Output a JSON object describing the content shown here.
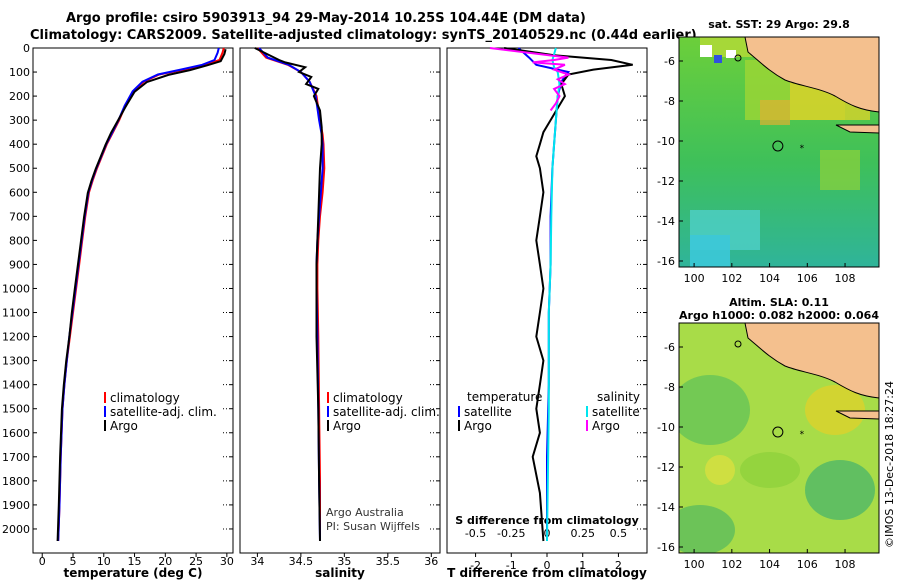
{
  "header": {
    "title_line1": "Argo profile: csiro 5903913_94 29-May-2014 10.25S 104.44E (DM data)",
    "title_line2": "Climatology: CARS2009. Satellite-adjusted climatology: synTS_20140529.nc (0.44d earlier)"
  },
  "credit": "©IMOS 13-Dec-2018 18:27:24",
  "colors": {
    "climatology": "#ff0000",
    "satellite": "#0000ff",
    "argo": "#000000",
    "sat_s": "#00e5ee",
    "argo_s": "#ff00ff"
  },
  "chart_data": [
    {
      "type": "line",
      "id": "temperature",
      "xlabel": "temperature (deg C)",
      "ylabel": "",
      "xlim": [
        -1.5,
        31
      ],
      "ylim": [
        2100,
        0
      ],
      "xticks": [
        "0",
        "5",
        "10",
        "15",
        "20",
        "25",
        "30"
      ],
      "xtick_values": [
        0,
        5,
        10,
        15,
        20,
        25,
        30
      ],
      "yticks": [
        "0",
        "100",
        "200",
        "300",
        "400",
        "500",
        "600",
        "700",
        "800",
        "900",
        "1000",
        "1100",
        "1200",
        "1300",
        "1400",
        "1500",
        "1600",
        "1700",
        "1800",
        "1900",
        "2000"
      ],
      "ytick_values": [
        0,
        100,
        200,
        300,
        400,
        500,
        600,
        700,
        800,
        900,
        1000,
        1100,
        1200,
        1300,
        1400,
        1500,
        1600,
        1700,
        1800,
        1900,
        2000
      ],
      "legend": [
        {
          "label": "climatology",
          "color": "#ff0000"
        },
        {
          "label": "satellite-adj. clim.",
          "color": "#0000ff"
        },
        {
          "label": "Argo",
          "color": "#000000"
        }
      ],
      "series": [
        {
          "name": "climatology",
          "color": "#ff0000",
          "x": [
            29.5,
            29.3,
            28.8,
            26.5,
            23,
            19,
            16.5,
            14.8,
            13.5,
            12.5,
            11.5,
            10.5,
            9.7,
            8.9,
            8.2,
            7.6,
            7.0,
            6.5,
            6.0,
            5.5,
            5.0,
            4.5,
            4.0,
            3.6,
            3.3,
            3.0,
            2.8,
            2.6
          ],
          "y": [
            0,
            20,
            50,
            70,
            90,
            110,
            140,
            180,
            240,
            300,
            350,
            400,
            450,
            500,
            550,
            600,
            700,
            800,
            900,
            1000,
            1100,
            1200,
            1300,
            1400,
            1500,
            1700,
            1900,
            2050
          ]
        },
        {
          "name": "satellite-adj. clim.",
          "color": "#0000ff",
          "x": [
            28.7,
            28.5,
            28.0,
            26.0,
            22.5,
            18.8,
            16.3,
            14.7,
            13.4,
            12.4,
            11.4,
            10.4,
            9.6,
            8.8,
            8.1,
            7.5,
            6.9,
            6.4,
            5.9,
            5.4,
            4.9,
            4.4,
            4.0,
            3.6,
            3.3,
            3.0,
            2.8,
            2.6
          ],
          "y": [
            0,
            20,
            50,
            70,
            90,
            110,
            140,
            180,
            240,
            300,
            350,
            400,
            450,
            500,
            550,
            600,
            700,
            800,
            900,
            1000,
            1100,
            1200,
            1300,
            1400,
            1500,
            1700,
            1900,
            2050
          ]
        },
        {
          "name": "Argo",
          "color": "#000000",
          "x": [
            29.8,
            29.6,
            29.0,
            26.8,
            24,
            20.5,
            17,
            15,
            13.6,
            12.3,
            11.2,
            10.3,
            9.5,
            8.7,
            8.0,
            7.4,
            6.8,
            6.3,
            5.8,
            5.3,
            4.8,
            4.4,
            3.9,
            3.5,
            3.2,
            2.9,
            2.7,
            2.5
          ],
          "y": [
            5,
            25,
            55,
            72,
            92,
            112,
            142,
            182,
            242,
            302,
            352,
            402,
            452,
            502,
            552,
            602,
            702,
            802,
            902,
            1002,
            1102,
            1202,
            1302,
            1402,
            1502,
            1702,
            1902,
            2050
          ]
        }
      ]
    },
    {
      "type": "line",
      "id": "salinity",
      "xlabel": "salinity",
      "ylabel": "",
      "xlim": [
        33.8,
        36.1
      ],
      "ylim": [
        2100,
        0
      ],
      "xticks": [
        "34",
        "34.5",
        "35",
        "35.5",
        "36"
      ],
      "xtick_values": [
        34,
        34.5,
        35,
        35.5,
        36
      ],
      "legend": [
        {
          "label": "climatology",
          "color": "#ff0000"
        },
        {
          "label": "satellite-adj. clim.",
          "color": "#0000ff"
        },
        {
          "label": "Argo",
          "color": "#000000"
        }
      ],
      "annotations": [
        "Argo Australia",
        "PI: Susan Wijffels"
      ],
      "series": [
        {
          "name": "climatology",
          "color": "#ff0000",
          "x": [
            34.0,
            34.1,
            34.35,
            34.5,
            34.6,
            34.68,
            34.72,
            34.75,
            34.76,
            34.77,
            34.75,
            34.72,
            34.7,
            34.69,
            34.69,
            34.7,
            34.71,
            34.72,
            34.72
          ],
          "y": [
            0,
            40,
            70,
            100,
            140,
            200,
            300,
            360,
            400,
            500,
            600,
            700,
            800,
            900,
            1000,
            1200,
            1500,
            1800,
            2050
          ]
        },
        {
          "name": "satellite-adj. clim.",
          "color": "#0000ff",
          "x": [
            34.02,
            34.12,
            34.36,
            34.5,
            34.6,
            34.67,
            34.71,
            34.74,
            34.75,
            34.75,
            34.73,
            34.71,
            34.69,
            34.68,
            34.68,
            34.69,
            34.7,
            34.71,
            34.72
          ],
          "y": [
            0,
            40,
            70,
            100,
            140,
            200,
            300,
            360,
            400,
            500,
            600,
            700,
            800,
            900,
            1000,
            1200,
            1500,
            1800,
            2050
          ]
        },
        {
          "name": "Argo",
          "color": "#000000",
          "x": [
            33.97,
            34.25,
            34.32,
            34.55,
            34.48,
            34.62,
            34.56,
            34.7,
            34.65,
            34.72,
            34.74,
            34.74,
            34.72,
            34.7,
            34.68,
            34.68,
            34.68,
            34.7,
            34.71,
            34.72
          ],
          "y": [
            0,
            50,
            60,
            80,
            100,
            120,
            150,
            170,
            200,
            260,
            330,
            400,
            500,
            700,
            900,
            1000,
            1200,
            1500,
            1800,
            2050
          ]
        }
      ]
    },
    {
      "type": "line",
      "id": "difference",
      "xlabel": "T difference from climatology",
      "xlabel2": "S difference from climatology",
      "xlim": [
        -2.8,
        2.8
      ],
      "ylim": [
        2100,
        0
      ],
      "xticks": [
        "-2",
        "-1",
        "0",
        "1",
        "2"
      ],
      "xtick_values": [
        -2,
        -1,
        0,
        1,
        2
      ],
      "xticks2": [
        "-0.5",
        "-0.25",
        "0",
        "0.25",
        "0.5"
      ],
      "xtick2_values": [
        -0.5,
        -0.25,
        0,
        0.25,
        0.5
      ],
      "legend_left_title": "temperature",
      "legend_right_title": "salinity",
      "legend": [
        {
          "label": "satellite",
          "color": "#0000ff"
        },
        {
          "label": "Argo",
          "color": "#000000"
        },
        {
          "label": "satellite",
          "color": "#00e5ee"
        },
        {
          "label": "Argo",
          "color": "#ff00ff"
        }
      ],
      "series": [
        {
          "name": "T satellite",
          "color": "#0000ff",
          "x": [
            -0.8,
            -0.5,
            -0.3,
            0.6,
            0.4,
            0.3,
            0.25,
            0.2,
            0.15,
            0.1,
            0.1,
            0.05,
            0.05,
            0,
            0
          ],
          "y": [
            0,
            40,
            70,
            100,
            140,
            200,
            300,
            400,
            500,
            700,
            900,
            1100,
            1400,
            1700,
            2050
          ]
        },
        {
          "name": "T Argo",
          "color": "#000000",
          "x": [
            -1.2,
            0.2,
            1.8,
            2.4,
            1.3,
            0.6,
            0.4,
            0.5,
            0.3,
            0.1,
            -0.1,
            -0.2,
            -0.3,
            -0.2,
            -0.1,
            -0.2,
            -0.3,
            -0.2,
            -0.1,
            -0.2,
            -0.3,
            -0.1,
            -0.2,
            -0.3,
            -0.2,
            -0.4,
            -0.2,
            -0.1
          ],
          "y": [
            0,
            30,
            50,
            70,
            90,
            110,
            150,
            200,
            250,
            300,
            350,
            400,
            450,
            500,
            600,
            700,
            800,
            900,
            1000,
            1100,
            1200,
            1300,
            1400,
            1500,
            1600,
            1700,
            1850,
            2050
          ]
        },
        {
          "name": "S satellite",
          "color": "#00e5ee",
          "x": [
            0.25,
            0.15,
            0.2,
            0.3,
            0.35,
            0.3,
            0.25,
            0.2,
            0.15,
            0.12,
            0.1,
            0.05,
            0.05,
            0
          ],
          "y": [
            0,
            50,
            80,
            100,
            150,
            200,
            300,
            400,
            500,
            700,
            900,
            1100,
            1500,
            2050
          ]
        },
        {
          "name": "S Argo",
          "color": "#ff00ff",
          "x": [
            -1.6,
            0.6,
            0.2,
            -0.4,
            0.5,
            0.2,
            0.6,
            0.3,
            0.5,
            0.2,
            0.35,
            0.25,
            0.1
          ],
          "y": [
            0,
            40,
            50,
            60,
            70,
            90,
            110,
            130,
            150,
            170,
            200,
            230,
            260
          ]
        }
      ]
    },
    {
      "type": "heatmap",
      "id": "sst-map",
      "title": "sat. SST: 29 Argo: 29.8",
      "xlim": [
        99.2,
        109.8
      ],
      "ylim": [
        -16.3,
        -4.8
      ],
      "xticks": [
        "100",
        "102",
        "104",
        "106",
        "108"
      ],
      "xtick_values": [
        100,
        102,
        104,
        106,
        108
      ],
      "yticks": [
        "-6",
        "-8",
        "-10",
        "-12",
        "-14",
        "-16"
      ],
      "ytick_values": [
        -6,
        -8,
        -10,
        -12,
        -14,
        -16
      ],
      "marker": {
        "lon": 104.44,
        "lat": -10.25
      }
    },
    {
      "type": "heatmap",
      "id": "sla-map",
      "title": "Altim. SLA: 0.11",
      "subtitle": "Argo h1000: 0.082 h2000: 0.064",
      "xlim": [
        99.2,
        109.8
      ],
      "ylim": [
        -16.3,
        -4.8
      ],
      "xticks": [
        "100",
        "102",
        "104",
        "106",
        "108"
      ],
      "xtick_values": [
        100,
        102,
        104,
        106,
        108
      ],
      "yticks": [
        "-6",
        "-8",
        "-10",
        "-12",
        "-14",
        "-16"
      ],
      "ytick_values": [
        -6,
        -8,
        -10,
        -12,
        -14,
        -16
      ],
      "marker": {
        "lon": 104.44,
        "lat": -10.25
      }
    }
  ]
}
